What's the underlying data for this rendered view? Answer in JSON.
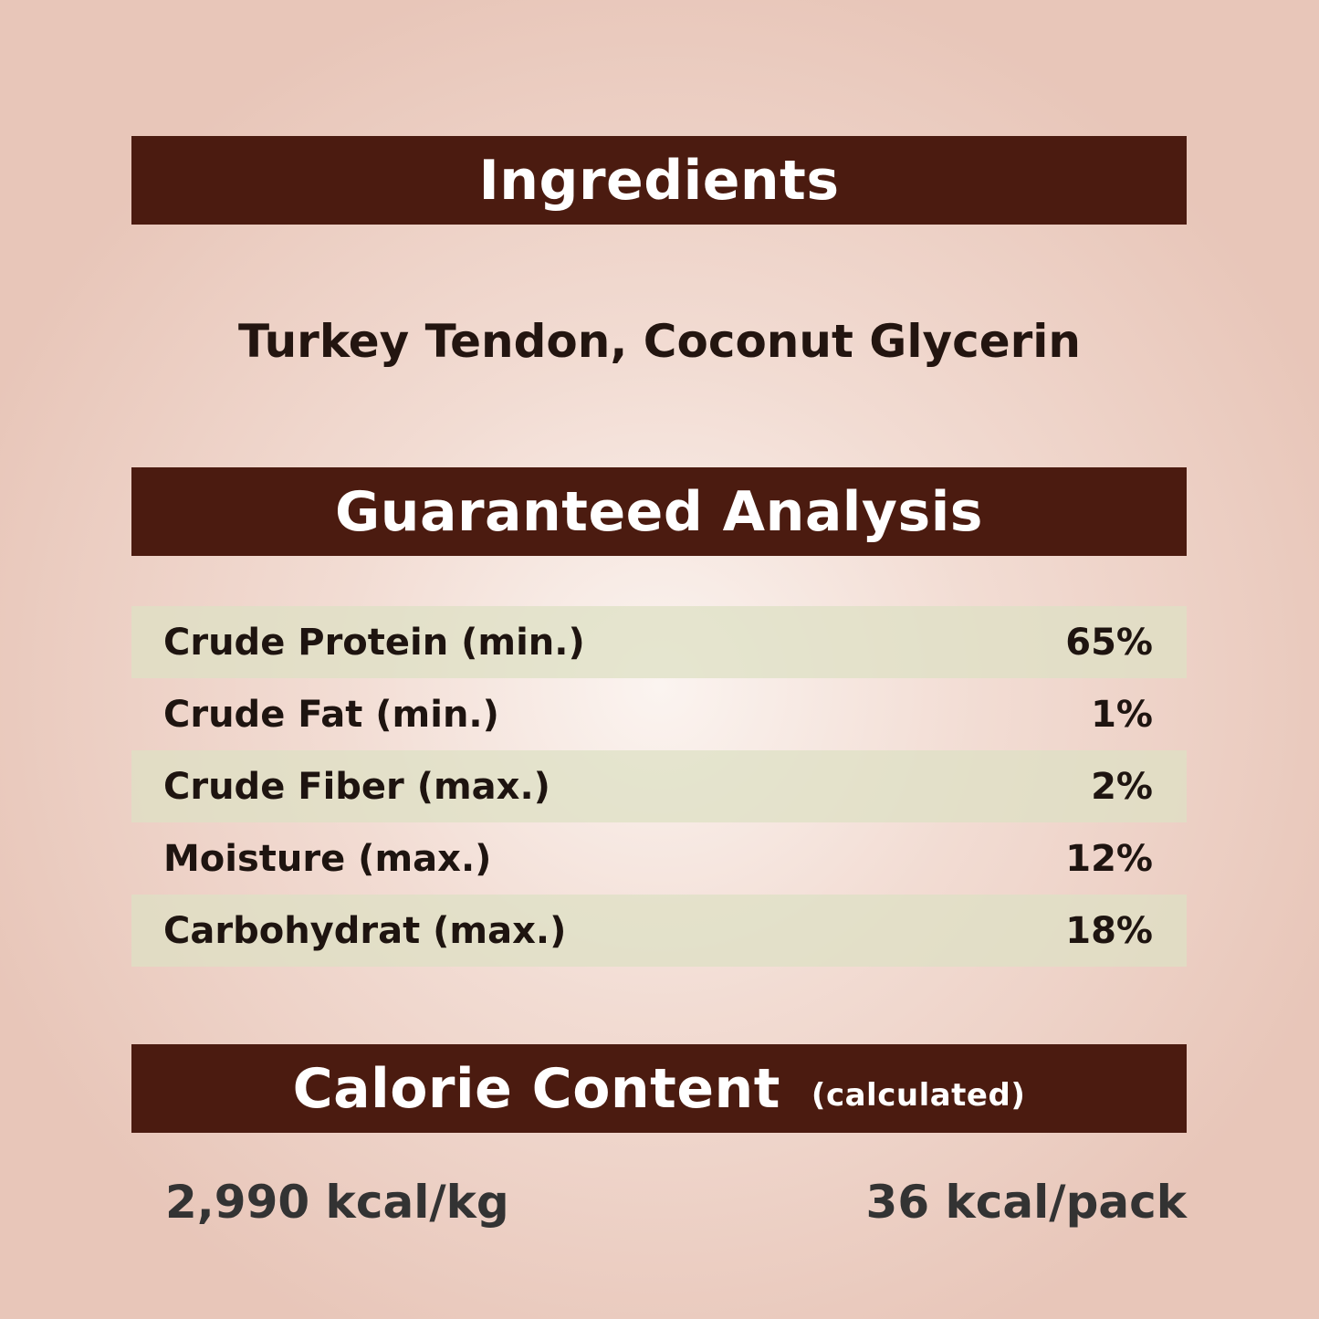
{
  "ingredients": {
    "title": "Ingredients",
    "text": "Turkey Tendon, Coconut Glycerin"
  },
  "analysis": {
    "title": "Guaranteed Analysis",
    "rows": [
      {
        "label": "Crude Protein (min.)",
        "value": "65%"
      },
      {
        "label": "Crude Fat (min.)",
        "value": "1%"
      },
      {
        "label": "Crude Fiber (max.)",
        "value": "2%"
      },
      {
        "label": "Moisture (max.)",
        "value": "12%"
      },
      {
        "label": "Carbohydrat (max.)",
        "value": "18%"
      }
    ]
  },
  "calorie": {
    "title": "Calorie Content",
    "subtitle": "(calculated)",
    "per_kg": "2,990 kcal/kg",
    "per_pack": "36 kcal/pack"
  },
  "colors": {
    "banner": "#4b1b10",
    "row_stripe": "#dee0c4",
    "background": "#e8c6b9"
  }
}
